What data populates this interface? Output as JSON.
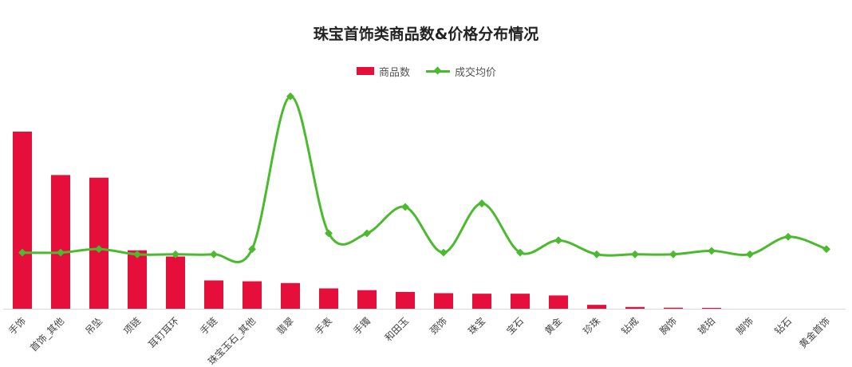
{
  "chart_data": {
    "type": "bar+line",
    "title": "珠宝首饰类商品数&价格分布情况",
    "categories": [
      "手饰",
      "首饰_其他",
      "吊坠",
      "项链",
      "耳钉耳环",
      "手链",
      "珠宝玉石_其他",
      "翡翠",
      "手表",
      "手镯",
      "和田玉",
      "颈饰",
      "珠宝",
      "宝石",
      "黄金",
      "珍珠",
      "钻戒",
      "胸饰",
      "琥珀",
      "脚饰",
      "钻石",
      "黄金首饰"
    ],
    "series": [
      {
        "name": "商品数",
        "type": "bar",
        "color": "#e60f3c",
        "values": [
          100,
          75.5,
          74,
          33,
          29.5,
          16,
          15.5,
          14.5,
          11.5,
          10.5,
          9.5,
          8.8,
          8.5,
          8.5,
          7.5,
          2.2,
          1,
          0.6,
          0.5,
          0,
          0,
          0
        ]
      },
      {
        "name": "成交均价",
        "type": "line",
        "color": "#4cba2e",
        "values": [
          32,
          32,
          34,
          31,
          31,
          31,
          34,
          121,
          43,
          43,
          58,
          32,
          60,
          32,
          39,
          31,
          31,
          31,
          33,
          31,
          41,
          34
        ]
      }
    ],
    "ylim": [
      0,
      125
    ],
    "xlabel": "",
    "ylabel": "",
    "legend": "top-center",
    "grid": false
  }
}
